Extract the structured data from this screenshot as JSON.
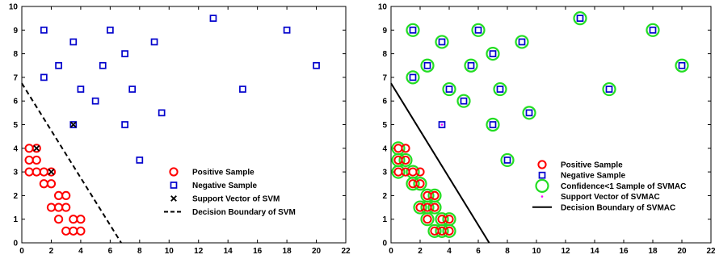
{
  "chart_data": [
    {
      "type": "scatter",
      "xlim": [
        0,
        22
      ],
      "ylim": [
        0,
        10
      ],
      "x_ticks": [
        0,
        2,
        4,
        6,
        8,
        10,
        12,
        14,
        16,
        18,
        20,
        22
      ],
      "y_ticks": [
        0,
        1,
        2,
        3,
        4,
        5,
        6,
        7,
        8,
        9,
        10
      ],
      "grid": false,
      "legend_position": "lower-right",
      "series": [
        {
          "name": "Positive Sample",
          "marker": "circle",
          "color": "#ff0000",
          "points": [
            [
              0.5,
              4
            ],
            [
              1,
              4
            ],
            [
              0.5,
              3.5
            ],
            [
              1,
              3.5
            ],
            [
              0.5,
              3
            ],
            [
              1,
              3
            ],
            [
              1.5,
              3
            ],
            [
              2,
              3
            ],
            [
              1.5,
              2.5
            ],
            [
              2,
              2.5
            ],
            [
              2.5,
              2
            ],
            [
              3,
              2
            ],
            [
              2,
              1.5
            ],
            [
              2.5,
              1.5
            ],
            [
              3,
              1.5
            ],
            [
              2.5,
              1
            ],
            [
              3.5,
              1
            ],
            [
              4,
              1
            ],
            [
              3,
              0.5
            ],
            [
              3.5,
              0.5
            ],
            [
              4,
              0.5
            ]
          ]
        },
        {
          "name": "Negative Sample",
          "marker": "square",
          "color": "#0000cc",
          "points": [
            [
              1.5,
              9
            ],
            [
              3.5,
              8.5
            ],
            [
              6,
              9
            ],
            [
              13,
              9.5
            ],
            [
              18,
              9
            ],
            [
              9,
              8.5
            ],
            [
              7,
              8
            ],
            [
              2.5,
              7.5
            ],
            [
              5.5,
              7.5
            ],
            [
              1.5,
              7
            ],
            [
              20,
              7.5
            ],
            [
              4,
              6.5
            ],
            [
              7.5,
              6.5
            ],
            [
              15,
              6.5
            ],
            [
              5,
              6
            ],
            [
              9.5,
              5.5
            ],
            [
              3.5,
              5
            ],
            [
              7,
              5
            ],
            [
              8,
              3.5
            ]
          ]
        },
        {
          "name": "Support Vector of SVM",
          "marker": "x",
          "color": "#000000",
          "points": [
            [
              1,
              4
            ],
            [
              2,
              3
            ],
            [
              3.5,
              5
            ]
          ]
        },
        {
          "name": "Decision Boundary of SVM",
          "marker": "dashed-line",
          "color": "#000000",
          "points": [
            [
              0,
              6.75
            ],
            [
              6.75,
              0
            ]
          ]
        }
      ]
    },
    {
      "type": "scatter",
      "xlim": [
        0,
        22
      ],
      "ylim": [
        0,
        10
      ],
      "x_ticks": [
        0,
        2,
        4,
        6,
        8,
        10,
        12,
        14,
        16,
        18,
        20,
        22
      ],
      "y_ticks": [
        0,
        1,
        2,
        3,
        4,
        5,
        6,
        7,
        8,
        9,
        10
      ],
      "grid": false,
      "legend_position": "lower-right",
      "series": [
        {
          "name": "Positive Sample",
          "marker": "circle",
          "color": "#ff0000",
          "points": [
            [
              0.5,
              4
            ],
            [
              1,
              4
            ],
            [
              0.5,
              3.5
            ],
            [
              1,
              3.5
            ],
            [
              0.5,
              3
            ],
            [
              1,
              3
            ],
            [
              1.5,
              3
            ],
            [
              2,
              3
            ],
            [
              1.5,
              2.5
            ],
            [
              2,
              2.5
            ],
            [
              2.5,
              2
            ],
            [
              3,
              2
            ],
            [
              2,
              1.5
            ],
            [
              2.5,
              1.5
            ],
            [
              3,
              1.5
            ],
            [
              2.5,
              1
            ],
            [
              3.5,
              1
            ],
            [
              4,
              1
            ],
            [
              3,
              0.5
            ],
            [
              3.5,
              0.5
            ],
            [
              4,
              0.5
            ]
          ]
        },
        {
          "name": "Negative Sample",
          "marker": "square",
          "color": "#0000cc",
          "points": [
            [
              1.5,
              9
            ],
            [
              3.5,
              8.5
            ],
            [
              6,
              9
            ],
            [
              13,
              9.5
            ],
            [
              18,
              9
            ],
            [
              9,
              8.5
            ],
            [
              7,
              8
            ],
            [
              2.5,
              7.5
            ],
            [
              5.5,
              7.5
            ],
            [
              1.5,
              7
            ],
            [
              20,
              7.5
            ],
            [
              4,
              6.5
            ],
            [
              7.5,
              6.5
            ],
            [
              15,
              6.5
            ],
            [
              5,
              6
            ],
            [
              9.5,
              5.5
            ],
            [
              3.5,
              5
            ],
            [
              7,
              5
            ],
            [
              8,
              3.5
            ]
          ]
        },
        {
          "name": "Confidence<1 Sample of SVMAC",
          "marker": "big-circle",
          "color": "#22dd22",
          "points": [
            [
              0.5,
              4
            ],
            [
              0.5,
              3.5
            ],
            [
              1,
              3.5
            ],
            [
              0.5,
              3
            ],
            [
              1.5,
              3
            ],
            [
              1.5,
              2.5
            ],
            [
              2,
              2.5
            ],
            [
              2.5,
              2
            ],
            [
              3,
              2
            ],
            [
              2,
              1.5
            ],
            [
              2.5,
              1.5
            ],
            [
              3,
              1.5
            ],
            [
              2.5,
              1
            ],
            [
              3.5,
              1
            ],
            [
              4,
              1
            ],
            [
              3,
              0.5
            ],
            [
              3.5,
              0.5
            ],
            [
              4,
              0.5
            ],
            [
              1.5,
              9
            ],
            [
              3.5,
              8.5
            ],
            [
              6,
              9
            ],
            [
              13,
              9.5
            ],
            [
              18,
              9
            ],
            [
              9,
              8.5
            ],
            [
              7,
              8
            ],
            [
              2.5,
              7.5
            ],
            [
              5.5,
              7.5
            ],
            [
              1.5,
              7
            ],
            [
              20,
              7.5
            ],
            [
              4,
              6.5
            ],
            [
              7.5,
              6.5
            ],
            [
              15,
              6.5
            ],
            [
              5,
              6
            ],
            [
              9.5,
              5.5
            ],
            [
              7,
              5
            ],
            [
              8,
              3.5
            ]
          ]
        },
        {
          "name": "Support Vector of SVMAC",
          "marker": "dot",
          "color": "#ff00ff",
          "points": [
            [
              3.5,
              5
            ]
          ]
        },
        {
          "name": "Decision Boundary of SVMAC",
          "marker": "solid-line",
          "color": "#000000",
          "points": [
            [
              0,
              6.75
            ],
            [
              6.75,
              0
            ]
          ]
        }
      ]
    }
  ]
}
